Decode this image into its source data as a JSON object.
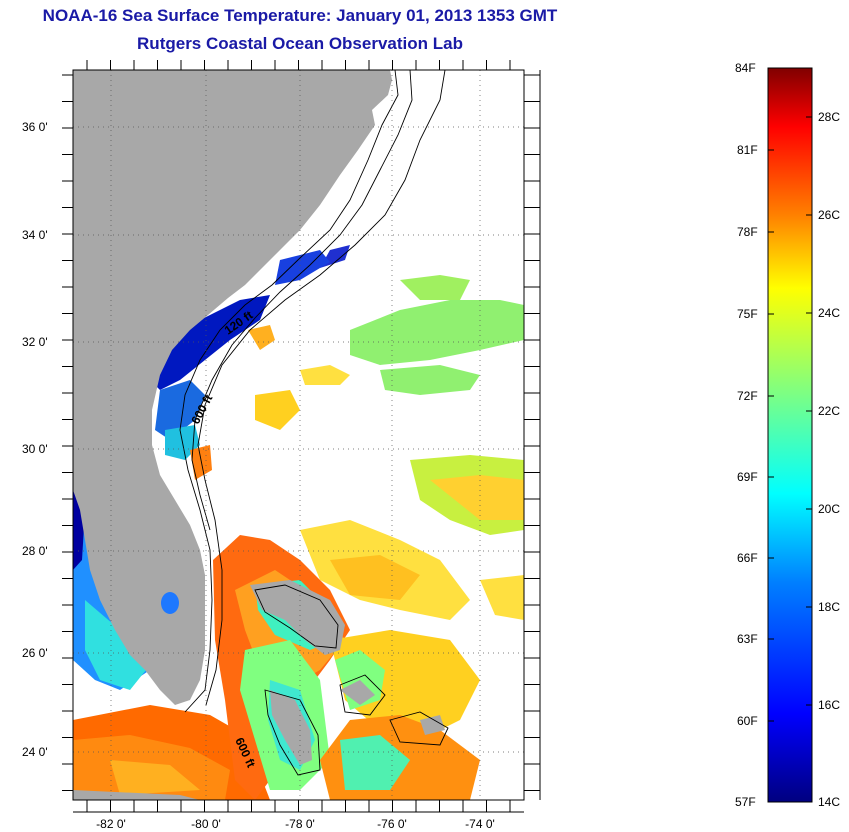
{
  "header": {
    "title": "NOAA-16 Sea Surface Temperature:  January 01, 2013 1353 GMT",
    "subtitle": "Rutgers Coastal Ocean Observation Lab"
  },
  "map": {
    "lat_labels": [
      "36 0'",
      "34 0'",
      "32 0'",
      "30 0'",
      "28 0'",
      "26 0'",
      "24 0'"
    ],
    "lon_labels": [
      "-82 0'",
      "-80 0'",
      "-78 0'",
      "-76 0'",
      "-74 0'"
    ],
    "contour_labels": [
      "120 ft",
      "600 ft",
      "600 ft"
    ],
    "lat_range": [
      23,
      37.2
    ],
    "lon_range": [
      -83,
      -73
    ]
  },
  "colorbar": {
    "f_labels": [
      "84F",
      "81F",
      "78F",
      "75F",
      "72F",
      "69F",
      "66F",
      "63F",
      "60F",
      "57F"
    ],
    "c_labels": [
      "28C",
      "26C",
      "24C",
      "22C",
      "20C",
      "18C",
      "16C",
      "14C"
    ],
    "c_range": [
      14,
      29
    ],
    "colors": {
      "c14": "#000080",
      "c16": "#0000ff",
      "c18": "#0080ff",
      "c20": "#00ffff",
      "c22": "#80ff80",
      "c24": "#ffff00",
      "c26": "#ff8000",
      "c28": "#ff0000",
      "c29": "#800000"
    }
  },
  "colors": {
    "land": "#a8a8a8",
    "title": "#1a1aa6"
  }
}
